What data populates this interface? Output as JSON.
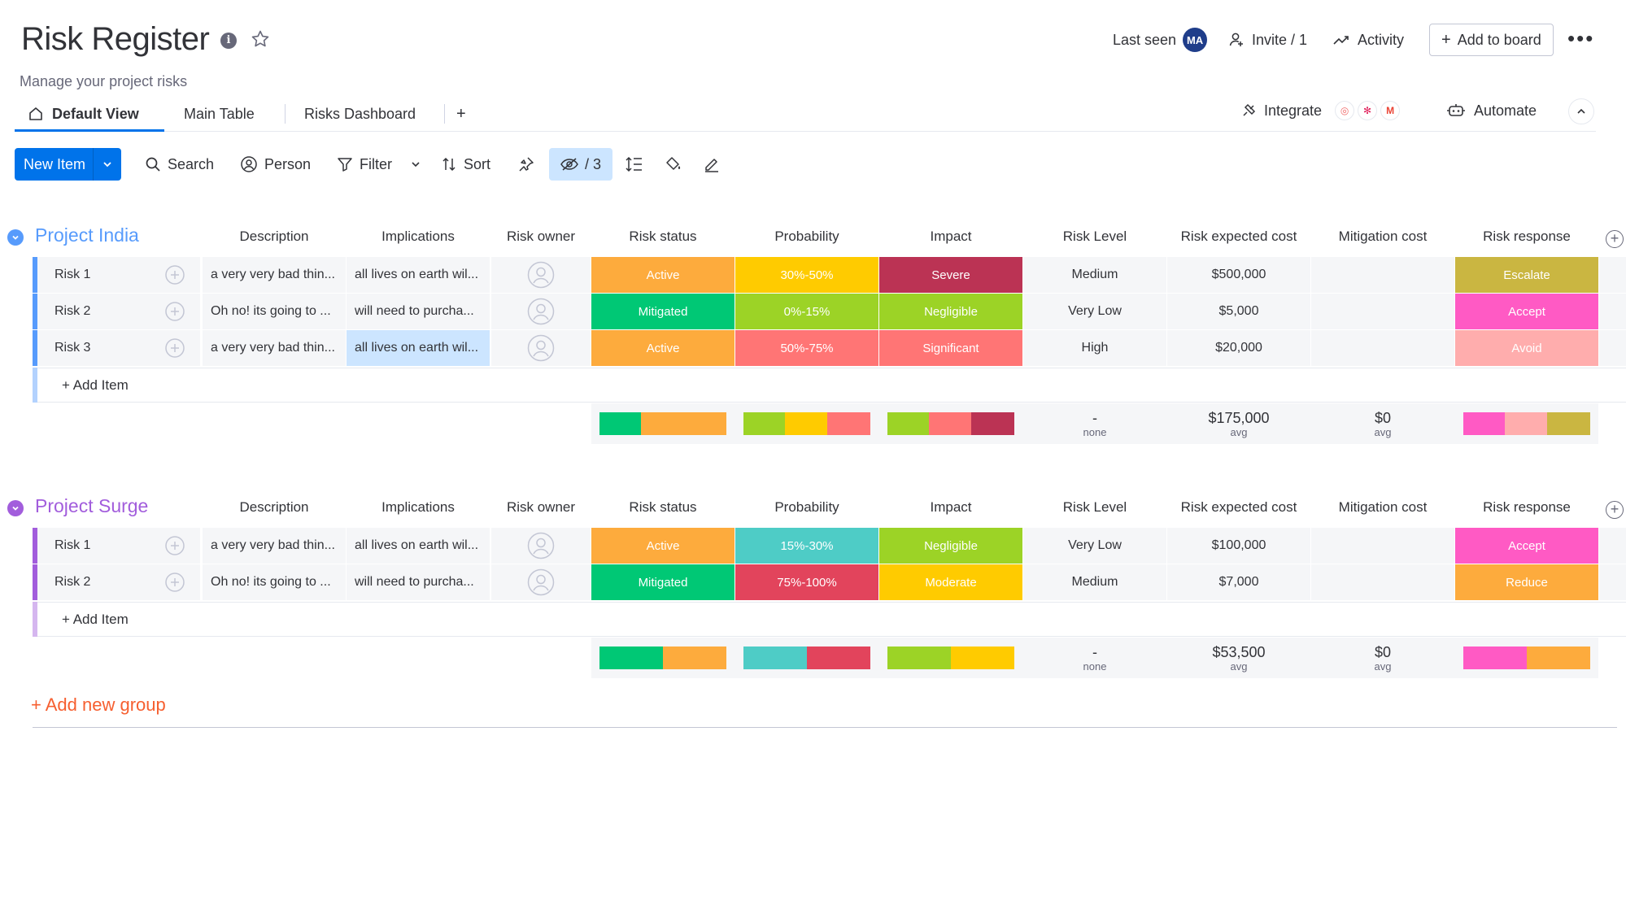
{
  "header": {
    "title": "Risk Register",
    "subtitle": "Manage your project risks",
    "last_seen_label": "Last seen",
    "avatar_initials": "MA",
    "invite_label": "Invite / 1",
    "activity_label": "Activity",
    "add_to_board_label": "Add to board",
    "more_label": "•••"
  },
  "tabs": [
    {
      "label": "Default View"
    },
    {
      "label": "Main Table"
    },
    {
      "label": "Risks Dashboard"
    },
    {
      "label": "+"
    }
  ],
  "integrations": {
    "integrate_label": "Integrate",
    "automate_label": "Automate"
  },
  "toolbar": {
    "new_item_label": "New Item",
    "search_label": "Search",
    "person_label": "Person",
    "filter_label": "Filter",
    "sort_label": "Sort",
    "hidden_count": "/ 3"
  },
  "columns": [
    "Description",
    "Implications",
    "Risk owner",
    "Risk status",
    "Probability",
    "Impact",
    "Risk Level",
    "Risk expected cost",
    "Mitigation cost",
    "Risk response"
  ],
  "groups": [
    {
      "name": "Project India",
      "color": "#579bfc",
      "rows": [
        {
          "name": "Risk 1",
          "description": "a very very bad thin...",
          "implications": "all lives on earth wil...",
          "status": "Active",
          "status_color": "#fdab3d",
          "probability": "30%-50%",
          "probability_color": "#ffcb00",
          "impact": "Severe",
          "impact_color": "#bb3354",
          "level": "Medium",
          "expected_cost": "$500,000",
          "mitigation_cost": "",
          "response": "Escalate",
          "response_color": "#cab641"
        },
        {
          "name": "Risk 2",
          "description": "Oh no! its going to ...",
          "implications": "will need to purcha...",
          "status": "Mitigated",
          "status_color": "#00c875",
          "probability": "0%-15%",
          "probability_color": "#9cd326",
          "impact": "Negligible",
          "impact_color": "#9cd326",
          "level": "Very Low",
          "expected_cost": "$5,000",
          "mitigation_cost": "",
          "response": "Accept",
          "response_color": "#ff5ac4"
        },
        {
          "name": "Risk 3",
          "description": "a very very bad thin...",
          "implications": "all lives on earth wil...",
          "status": "Active",
          "status_color": "#fdab3d",
          "probability": "50%-75%",
          "probability_color": "#ff7575",
          "impact": "Significant",
          "impact_color": "#ff7575",
          "level": "High",
          "expected_cost": "$20,000",
          "mitigation_cost": "",
          "response": "Avoid",
          "response_color": "#ffadad"
        }
      ],
      "add_item_label": "+ Add Item",
      "summary": {
        "status": [
          {
            "color": "#00c875",
            "fraction": 0.33
          },
          {
            "color": "#fdab3d",
            "fraction": 0.67
          }
        ],
        "probability": [
          {
            "color": "#9cd326",
            "fraction": 0.33
          },
          {
            "color": "#ffcb00",
            "fraction": 0.33
          },
          {
            "color": "#ff7575",
            "fraction": 0.34
          }
        ],
        "impact": [
          {
            "color": "#9cd326",
            "fraction": 0.33
          },
          {
            "color": "#ff7575",
            "fraction": 0.33
          },
          {
            "color": "#bb3354",
            "fraction": 0.34
          }
        ],
        "level_value": "-",
        "level_sub": "none",
        "expected_cost_value": "$175,000",
        "expected_cost_sub": "avg",
        "mitigation_value": "$0",
        "mitigation_sub": "avg",
        "response": [
          {
            "color": "#ff5ac4",
            "fraction": 0.33
          },
          {
            "color": "#ffadad",
            "fraction": 0.33
          },
          {
            "color": "#cab641",
            "fraction": 0.34
          }
        ]
      }
    },
    {
      "name": "Project Surge",
      "color": "#a25ddc",
      "rows": [
        {
          "name": "Risk 1",
          "description": "a very very bad thin...",
          "implications": "all lives on earth wil...",
          "status": "Active",
          "status_color": "#fdab3d",
          "probability": "15%-30%",
          "probability_color": "#4eccc6",
          "impact": "Negligible",
          "impact_color": "#9cd326",
          "level": "Very Low",
          "expected_cost": "$100,000",
          "mitigation_cost": "",
          "response": "Accept",
          "response_color": "#ff5ac4"
        },
        {
          "name": "Risk 2",
          "description": "Oh no! its going to ...",
          "implications": "will need to purcha...",
          "status": "Mitigated",
          "status_color": "#00c875",
          "probability": "75%-100%",
          "probability_color": "#e2445c",
          "impact": "Moderate",
          "impact_color": "#ffcb00",
          "level": "Medium",
          "expected_cost": "$7,000",
          "mitigation_cost": "",
          "response": "Reduce",
          "response_color": "#fdab3d"
        }
      ],
      "add_item_label": "+ Add Item",
      "summary": {
        "status": [
          {
            "color": "#00c875",
            "fraction": 0.5
          },
          {
            "color": "#fdab3d",
            "fraction": 0.5
          }
        ],
        "probability": [
          {
            "color": "#4eccc6",
            "fraction": 0.5
          },
          {
            "color": "#e2445c",
            "fraction": 0.5
          }
        ],
        "impact": [
          {
            "color": "#9cd326",
            "fraction": 0.5
          },
          {
            "color": "#ffcb00",
            "fraction": 0.5
          }
        ],
        "level_value": "-",
        "level_sub": "none",
        "expected_cost_value": "$53,500",
        "expected_cost_sub": "avg",
        "mitigation_value": "$0",
        "mitigation_sub": "avg",
        "response": [
          {
            "color": "#ff5ac4",
            "fraction": 0.5
          },
          {
            "color": "#fdab3d",
            "fraction": 0.5
          }
        ]
      }
    }
  ],
  "add_group_label": "+ Add new group",
  "colors": {
    "primary": "#0073ea",
    "text": "#323338",
    "muted": "#676879",
    "cell_bg": "#f5f6f8",
    "add_group": "#f65f30"
  }
}
